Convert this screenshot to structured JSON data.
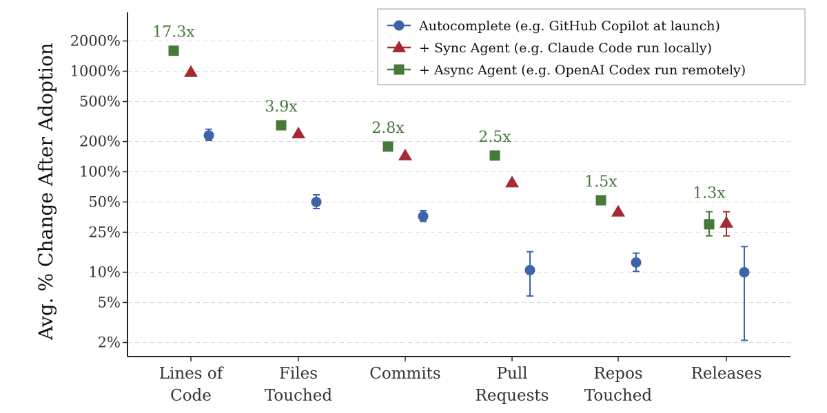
{
  "chart_data": {
    "type": "scatter",
    "title": "",
    "xlabel": "",
    "ylabel": "Avg. % Change After Adoption",
    "yscale": "log",
    "ylim": [
      1.5,
      3000
    ],
    "yticks": [
      2,
      5,
      10,
      25,
      50,
      100,
      200,
      500,
      1000,
      2000
    ],
    "ytick_labels": [
      "2%",
      "5%",
      "10%",
      "25%",
      "50%",
      "100%",
      "200%",
      "500%",
      "1000%",
      "2000%"
    ],
    "grid": "horizontal dashed",
    "legend_position": "top-right",
    "categories": [
      [
        "Lines of",
        "Code"
      ],
      [
        "Files",
        "Touched"
      ],
      [
        "Commits"
      ],
      [
        "Pull",
        "Requests"
      ],
      [
        "Repos",
        "Touched"
      ],
      [
        "Releases"
      ]
    ],
    "series": [
      {
        "name": "Autocomplete (e.g. GitHub Copilot at launch)",
        "marker": "circle",
        "color": "#3f63a8",
        "values": [
          230,
          50,
          36,
          10.5,
          12.5,
          10
        ],
        "err_low": [
          205,
          43,
          32,
          5.8,
          10.2,
          2.1
        ],
        "err_high": [
          265,
          59,
          41,
          16,
          15.5,
          18
        ]
      },
      {
        "name": "+ Sync Agent (e.g. Claude Code run locally)",
        "marker": "triangle",
        "color": "#a52a33",
        "values": [
          980,
          240,
          145,
          78,
          40,
          31
        ],
        "err_low": [
          null,
          null,
          null,
          null,
          null,
          23
        ],
        "err_high": [
          null,
          null,
          null,
          null,
          null,
          40
        ]
      },
      {
        "name": "+ Async Agent (e.g. OpenAI Codex run remotely)",
        "marker": "square",
        "color": "#467a38",
        "values": [
          1600,
          290,
          178,
          145,
          52,
          30
        ],
        "err_low": [
          null,
          null,
          null,
          null,
          null,
          23
        ],
        "err_high": [
          null,
          null,
          null,
          null,
          null,
          40
        ]
      }
    ],
    "annotations": [
      "17.3x",
      "3.9x",
      "2.8x",
      "2.5x",
      "1.5x",
      "1.3x"
    ],
    "annotation_color": "#467a38",
    "axis_color": "#222222",
    "grid_color": "#d9d9d9"
  }
}
